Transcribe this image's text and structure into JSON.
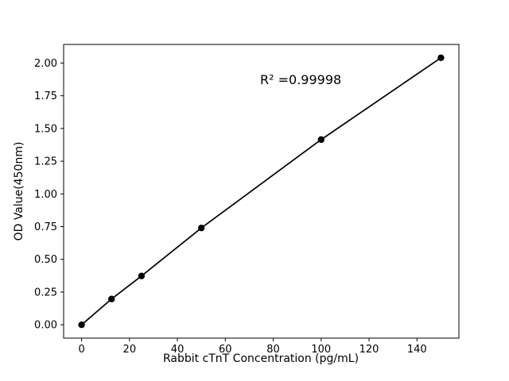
{
  "figure": {
    "background": "#ffffff"
  },
  "chart_data": {
    "type": "line",
    "title": "",
    "x": [
      0,
      12.5,
      25,
      50,
      100,
      150
    ],
    "y": [
      0.0,
      0.197,
      0.373,
      0.74,
      1.415,
      2.04
    ],
    "xlabel": "Rabbit cTnT Concentration (pg/mL)",
    "ylabel": "OD Value(450nm)",
    "annotation": "R² =0.99998",
    "xlim": [
      -7.5,
      157.5
    ],
    "ylim": [
      -0.102,
      2.142
    ],
    "xticks": [
      0,
      20,
      40,
      60,
      80,
      100,
      120,
      140
    ],
    "yticks": [
      0.0,
      0.25,
      0.5,
      0.75,
      1.0,
      1.25,
      1.5,
      1.75,
      2.0
    ],
    "grid": false,
    "line_color": "#000000",
    "marker": "circle",
    "marker_color": "#000000"
  }
}
